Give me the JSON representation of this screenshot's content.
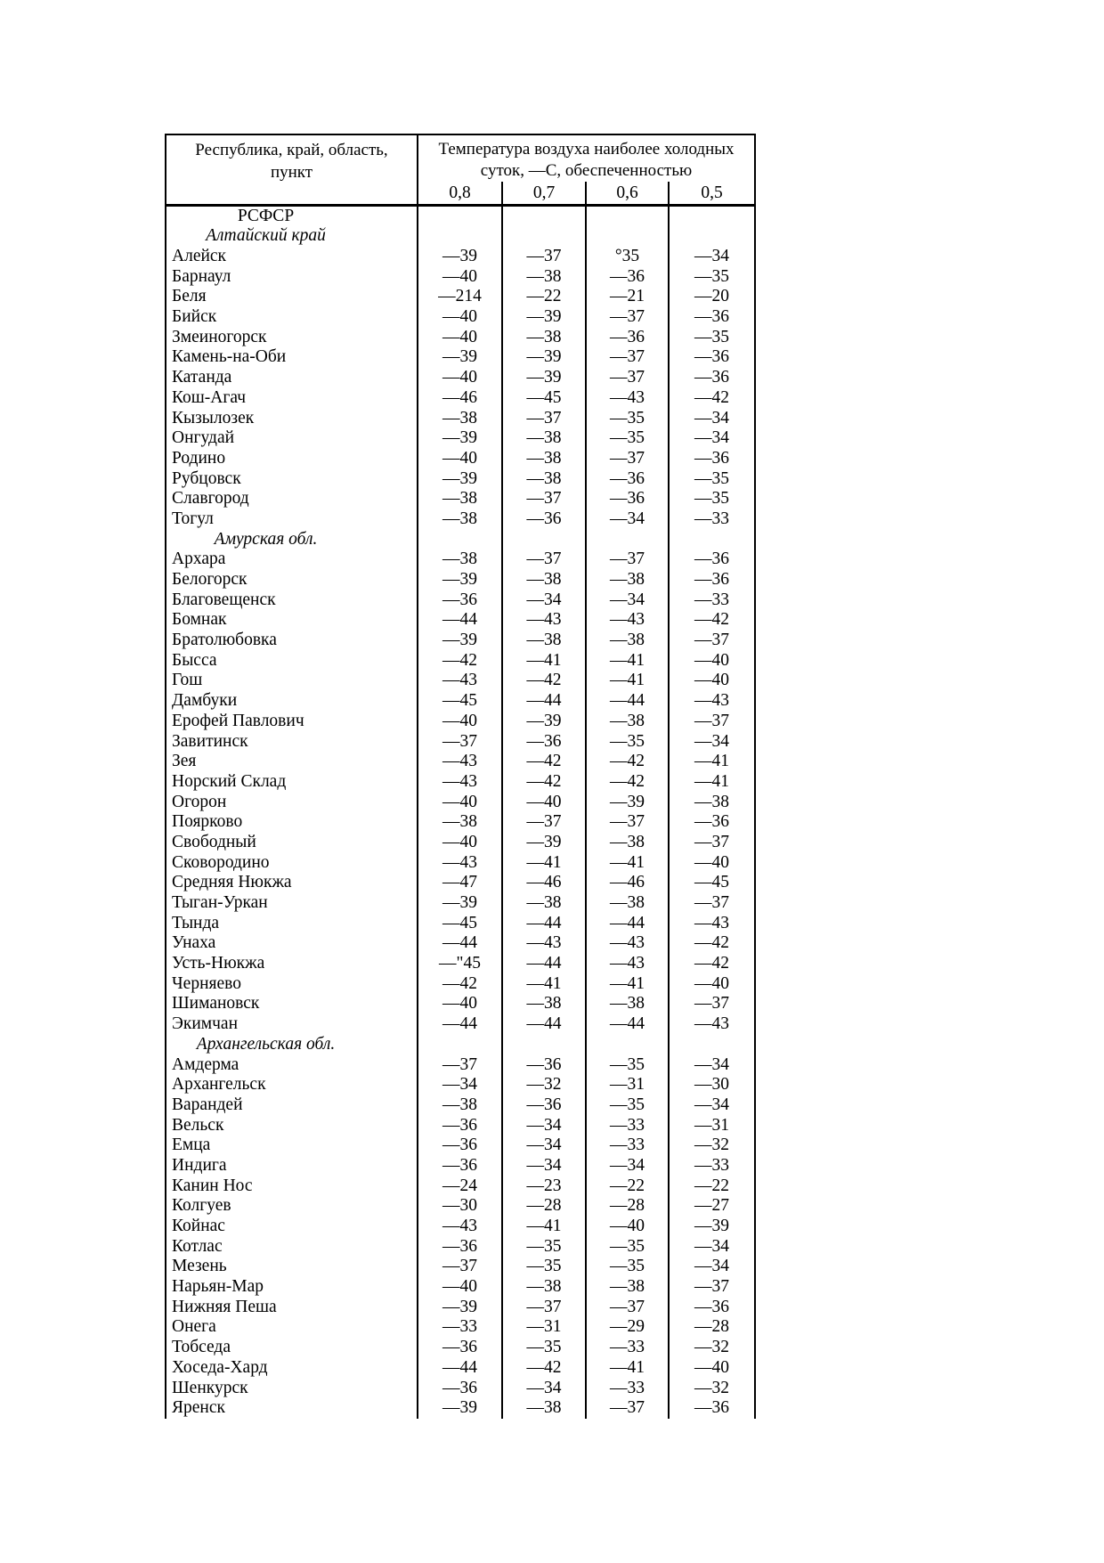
{
  "table": {
    "location_header": {
      "line1": "Республика, край, область,",
      "line2": "пункт"
    },
    "temperature_header": {
      "line1": "Температура воздуха наиболее холодных",
      "line2": "суток, —С, обеспеченностью"
    },
    "probability_columns": [
      "0,8",
      "0,7",
      "0,6",
      "0,5"
    ],
    "rows": [
      {
        "type": "country",
        "name": "РСФСР"
      },
      {
        "type": "region",
        "name": "Алтайский край"
      },
      {
        "type": "city",
        "name": "Алейск",
        "values": [
          "—39",
          "—37",
          "°35",
          "—34"
        ]
      },
      {
        "type": "city",
        "name": "Барнаул",
        "values": [
          "—40",
          "—38",
          "—36",
          "—35"
        ]
      },
      {
        "type": "city",
        "name": "Беля",
        "values": [
          "—214",
          "—22",
          "—21",
          "—20"
        ]
      },
      {
        "type": "city",
        "name": "Бийск",
        "values": [
          "—40",
          "—39",
          "—37",
          "—36"
        ]
      },
      {
        "type": "city",
        "name": "Змеиногорск",
        "values": [
          "—40",
          "—38",
          "—36",
          "—35"
        ]
      },
      {
        "type": "city",
        "name": "Камень-на-Оби",
        "values": [
          "—39",
          "—39",
          "—37",
          "—36"
        ]
      },
      {
        "type": "city",
        "name": "Катанда",
        "values": [
          "—40",
          "—39",
          "—37",
          "—36"
        ]
      },
      {
        "type": "city",
        "name": "Кош-Агач",
        "values": [
          "—46",
          "—45",
          "—43",
          "—42"
        ]
      },
      {
        "type": "city",
        "name": "Кызылозек",
        "values": [
          "—38",
          "—37",
          "—35",
          "—34"
        ]
      },
      {
        "type": "city",
        "name": "Онгудай",
        "values": [
          "—39",
          "—38",
          "—35",
          "—34"
        ]
      },
      {
        "type": "city",
        "name": "Родино",
        "values": [
          "—40",
          "—38",
          "—37",
          "—36"
        ]
      },
      {
        "type": "city",
        "name": "Рубцовск",
        "values": [
          "—39",
          "—38",
          "—36",
          "—35"
        ]
      },
      {
        "type": "city",
        "name": "Славгород",
        "values": [
          "—38",
          "—37",
          "—36",
          "—35"
        ]
      },
      {
        "type": "city",
        "name": "Тогул",
        "values": [
          "—38",
          "—36",
          "—34",
          "—33"
        ]
      },
      {
        "type": "region",
        "name": "Амурская обл."
      },
      {
        "type": "city",
        "name": "Архара",
        "values": [
          "—38",
          "—37",
          "—37",
          "—36"
        ]
      },
      {
        "type": "city",
        "name": "Белогорск",
        "values": [
          "—39",
          "—38",
          "—38",
          "—36"
        ]
      },
      {
        "type": "city",
        "name": "Благовещенск",
        "values": [
          "—36",
          "—34",
          "—34",
          "—33"
        ]
      },
      {
        "type": "city",
        "name": "Бомнак",
        "values": [
          "—44",
          "—43",
          "—43",
          "—42"
        ]
      },
      {
        "type": "city",
        "name": "Братолюбовка",
        "values": [
          "—39",
          "—38",
          "—38",
          "—37"
        ]
      },
      {
        "type": "city",
        "name": "Бысса",
        "values": [
          "—42",
          "—41",
          "—41",
          "—40"
        ]
      },
      {
        "type": "city",
        "name": "Гош",
        "values": [
          "—43",
          "—42",
          "—41",
          "—40"
        ]
      },
      {
        "type": "city",
        "name": "Дамбуки",
        "values": [
          "—45",
          "—44",
          "—44",
          "—43"
        ]
      },
      {
        "type": "city",
        "name": "Ерофей Павлович",
        "values": [
          "—40",
          "—39",
          "—38",
          "—37"
        ]
      },
      {
        "type": "city",
        "name": "Завитинск",
        "values": [
          "—37",
          "—36",
          "—35",
          "—34"
        ]
      },
      {
        "type": "city",
        "name": "Зея",
        "values": [
          "—43",
          "—42",
          "—42",
          "—41"
        ]
      },
      {
        "type": "city",
        "name": "Норский Склад",
        "values": [
          "—43",
          "—42",
          "—42",
          "—41"
        ]
      },
      {
        "type": "city",
        "name": "Огорон",
        "values": [
          "—40",
          "—40",
          "—39",
          "—38"
        ]
      },
      {
        "type": "city",
        "name": "Поярково",
        "values": [
          "—38",
          "—37",
          "—37",
          "—36"
        ]
      },
      {
        "type": "city",
        "name": "Свободный",
        "values": [
          "—40",
          "—39",
          "—38",
          "—37"
        ]
      },
      {
        "type": "city",
        "name": "Сковородино",
        "values": [
          "—43",
          "—41",
          "—41",
          "—40"
        ]
      },
      {
        "type": "city",
        "name": "Средняя Нюкжа",
        "values": [
          "—47",
          "—46",
          "—46",
          "—45"
        ]
      },
      {
        "type": "city",
        "name": "Тыган-Уркан",
        "values": [
          "—39",
          "—38",
          "—38",
          "—37"
        ]
      },
      {
        "type": "city",
        "name": "Тында",
        "values": [
          "—45",
          "—44",
          "—44",
          "—43"
        ]
      },
      {
        "type": "city",
        "name": "Унаха",
        "values": [
          "—44",
          "—43",
          "—43",
          "—42"
        ]
      },
      {
        "type": "city",
        "name": "Усть-Нюкжа",
        "values": [
          "—\"45",
          "—44",
          "—43",
          "—42"
        ]
      },
      {
        "type": "city",
        "name": "Черняево",
        "values": [
          "—42",
          "—41",
          "—41",
          "—40"
        ]
      },
      {
        "type": "city",
        "name": "Шимановск",
        "values": [
          "—40",
          "—38",
          "—38",
          "—37"
        ]
      },
      {
        "type": "city",
        "name": "Экимчан",
        "values": [
          "—44",
          "—44",
          "—44",
          "—43"
        ]
      },
      {
        "type": "region",
        "name": "Архангельская обл."
      },
      {
        "type": "city",
        "name": "Амдерма",
        "values": [
          "—37",
          "—36",
          "—35",
          "—34"
        ]
      },
      {
        "type": "city",
        "name": "Архангельск",
        "values": [
          "—34",
          "—32",
          "—31",
          "—30"
        ]
      },
      {
        "type": "city",
        "name": "Варандей",
        "values": [
          "—38",
          "—36",
          "—35",
          "—34"
        ]
      },
      {
        "type": "city",
        "name": "Вельск",
        "values": [
          "—36",
          "—34",
          "—33",
          "—31"
        ]
      },
      {
        "type": "city",
        "name": "Емца",
        "values": [
          "—36",
          "—34",
          "—33",
          "—32"
        ]
      },
      {
        "type": "city",
        "name": "Индига",
        "values": [
          "—36",
          "—34",
          "—34",
          "—33"
        ]
      },
      {
        "type": "city",
        "name": "Канин Нос",
        "values": [
          "—24",
          "—23",
          "—22",
          "—22"
        ]
      },
      {
        "type": "city",
        "name": "Колгуев",
        "values": [
          "—30",
          "—28",
          "—28",
          "—27"
        ]
      },
      {
        "type": "city",
        "name": "Койнас",
        "values": [
          "—43",
          "—41",
          "—40",
          "—39"
        ]
      },
      {
        "type": "city",
        "name": "Котлас",
        "values": [
          "—36",
          "—35",
          "—35",
          "—34"
        ]
      },
      {
        "type": "city",
        "name": "Мезень",
        "values": [
          "—37",
          "—35",
          "—35",
          "—34"
        ]
      },
      {
        "type": "city",
        "name": "Нарьян-Мар",
        "values": [
          "—40",
          "—38",
          "—38",
          "—37"
        ]
      },
      {
        "type": "city",
        "name": "Нижняя Пеша",
        "values": [
          "—39",
          "—37",
          "—37",
          "—36"
        ]
      },
      {
        "type": "city",
        "name": "Онега",
        "values": [
          "—33",
          "—31",
          "—29",
          "—28"
        ]
      },
      {
        "type": "city",
        "name": "Тобседа",
        "values": [
          "—36",
          "—35",
          "—33",
          "—32"
        ]
      },
      {
        "type": "city",
        "name": "Хоседа-Хард",
        "values": [
          "—44",
          "—42",
          "—41",
          "—40"
        ]
      },
      {
        "type": "city",
        "name": "Шенкурск",
        "values": [
          "—36",
          "—34",
          "—33",
          "—32"
        ]
      },
      {
        "type": "city",
        "name": "Яренск",
        "values": [
          "—39",
          "—38",
          "—37",
          "—36"
        ]
      }
    ]
  }
}
